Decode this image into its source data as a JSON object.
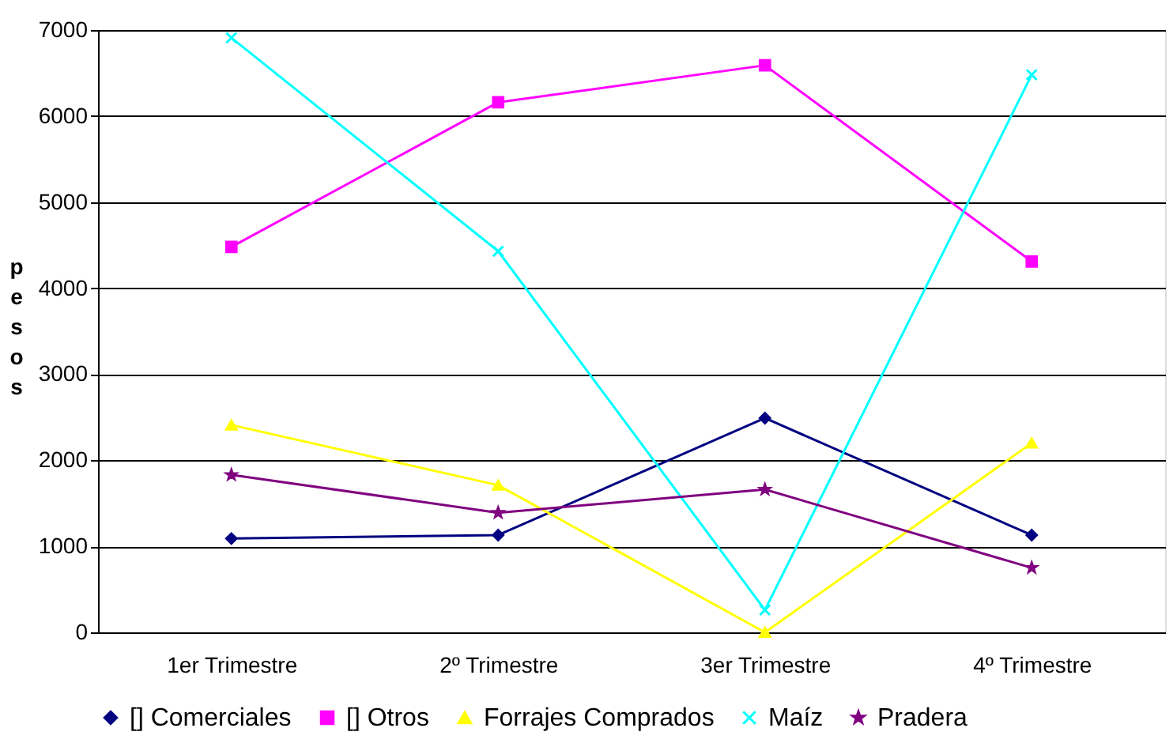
{
  "chart_data": {
    "type": "line",
    "ylabel": "pesos",
    "categories": [
      "1er Trimestre",
      "2º Trimestre",
      "3er Trimestre",
      "4º Trimestre"
    ],
    "series": [
      {
        "name": "[] Comerciales",
        "color": "#000080",
        "marker": "diamond",
        "values": [
          1090,
          1130,
          2490,
          1130
        ]
      },
      {
        "name": "[] Otros",
        "color": "#ff00ff",
        "marker": "square",
        "values": [
          4480,
          6160,
          6590,
          4310
        ]
      },
      {
        "name": "Forrajes Comprados",
        "color": "#ffff00",
        "marker": "triangle",
        "values": [
          2410,
          1710,
          0,
          2200
        ]
      },
      {
        "name": "Maíz",
        "color": "#00ffff",
        "marker": "cross",
        "values": [
          6910,
          4430,
          260,
          6480
        ]
      },
      {
        "name": "Pradera",
        "color": "#800080",
        "marker": "star",
        "values": [
          1830,
          1390,
          1660,
          750
        ]
      }
    ],
    "ylim": [
      0,
      7000
    ],
    "yticks": [
      0,
      1000,
      2000,
      3000,
      4000,
      5000,
      6000,
      7000
    ],
    "grid": "y",
    "legend": "bottom",
    "line_style": "solid"
  }
}
